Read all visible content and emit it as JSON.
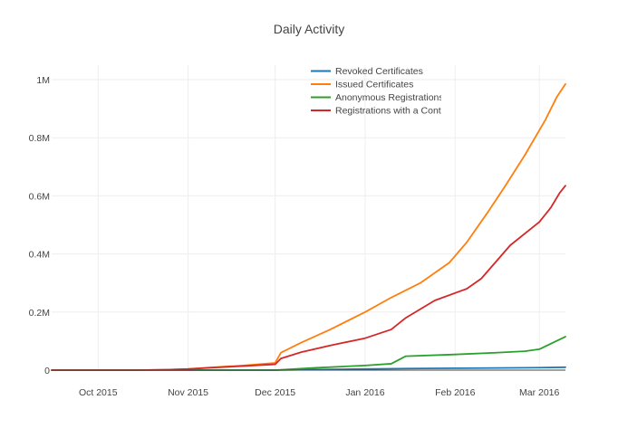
{
  "chart_data": {
    "type": "line",
    "title": "Daily Activity",
    "xlabel": "",
    "ylabel": "",
    "x_type": "date",
    "xlim": [
      "2015-09-15",
      "2016-03-10"
    ],
    "ylim": [
      0,
      1050000
    ],
    "grid": true,
    "legend_position": "top-right-inside",
    "x_ticks": [
      {
        "value": "2015-10-01",
        "label": "Oct 2015"
      },
      {
        "value": "2015-11-01",
        "label": "Nov 2015"
      },
      {
        "value": "2015-12-01",
        "label": "Dec 2015"
      },
      {
        "value": "2016-01-01",
        "label": "Jan 2016"
      },
      {
        "value": "2016-02-01",
        "label": "Feb 2016"
      },
      {
        "value": "2016-03-01",
        "label": "Mar 2016"
      }
    ],
    "y_ticks": [
      {
        "value": 0,
        "label": "0"
      },
      {
        "value": 200000,
        "label": "0.2M"
      },
      {
        "value": 400000,
        "label": "0.4M"
      },
      {
        "value": 600000,
        "label": "0.6M"
      },
      {
        "value": 800000,
        "label": "0.8M"
      },
      {
        "value": 1000000,
        "label": "1M"
      }
    ],
    "series": [
      {
        "name": "Revoked Certificates",
        "color": "#1f77b4",
        "points": [
          [
            "2015-09-15",
            0
          ],
          [
            "2015-12-01",
            0
          ],
          [
            "2015-12-15",
            2000
          ],
          [
            "2016-01-01",
            4000
          ],
          [
            "2016-01-15",
            5500
          ],
          [
            "2016-02-01",
            6500
          ],
          [
            "2016-02-15",
            7500
          ],
          [
            "2016-03-01",
            8500
          ],
          [
            "2016-03-10",
            10000
          ]
        ]
      },
      {
        "name": "Issued Certificates",
        "color": "#ff7f0e",
        "points": [
          [
            "2015-09-15",
            0
          ],
          [
            "2015-10-15",
            0
          ],
          [
            "2015-10-25",
            1500
          ],
          [
            "2015-11-01",
            4000
          ],
          [
            "2015-11-10",
            10000
          ],
          [
            "2015-11-20",
            16000
          ],
          [
            "2015-12-01",
            25000
          ],
          [
            "2015-12-03",
            60000
          ],
          [
            "2015-12-10",
            95000
          ],
          [
            "2015-12-20",
            140000
          ],
          [
            "2016-01-01",
            200000
          ],
          [
            "2016-01-10",
            250000
          ],
          [
            "2016-01-20",
            300000
          ],
          [
            "2016-01-30",
            370000
          ],
          [
            "2016-02-05",
            440000
          ],
          [
            "2016-02-12",
            540000
          ],
          [
            "2016-02-18",
            630000
          ],
          [
            "2016-02-25",
            740000
          ],
          [
            "2016-03-03",
            860000
          ],
          [
            "2016-03-07",
            940000
          ],
          [
            "2016-03-10",
            985000
          ]
        ]
      },
      {
        "name": "Anonymous Registrations",
        "color": "#2ca02c",
        "points": [
          [
            "2015-09-15",
            0
          ],
          [
            "2015-12-01",
            0
          ],
          [
            "2015-12-15",
            8000
          ],
          [
            "2016-01-01",
            16000
          ],
          [
            "2016-01-10",
            22000
          ],
          [
            "2016-01-15",
            48000
          ],
          [
            "2016-02-01",
            54000
          ],
          [
            "2016-02-15",
            60000
          ],
          [
            "2016-02-25",
            65000
          ],
          [
            "2016-03-01",
            72000
          ],
          [
            "2016-03-10",
            115000
          ]
        ]
      },
      {
        "name": "Registrations with a Contact",
        "color": "#d62728",
        "points": [
          [
            "2015-09-15",
            0
          ],
          [
            "2015-10-15",
            0
          ],
          [
            "2015-10-25",
            1500
          ],
          [
            "2015-11-01",
            4000
          ],
          [
            "2015-11-10",
            9000
          ],
          [
            "2015-11-20",
            14000
          ],
          [
            "2015-12-01",
            20000
          ],
          [
            "2015-12-03",
            40000
          ],
          [
            "2015-12-10",
            62000
          ],
          [
            "2015-12-20",
            85000
          ],
          [
            "2016-01-01",
            110000
          ],
          [
            "2016-01-10",
            140000
          ],
          [
            "2016-01-15",
            180000
          ],
          [
            "2016-01-25",
            240000
          ],
          [
            "2016-02-05",
            280000
          ],
          [
            "2016-02-10",
            315000
          ],
          [
            "2016-02-20",
            430000
          ],
          [
            "2016-03-01",
            510000
          ],
          [
            "2016-03-05",
            560000
          ],
          [
            "2016-03-08",
            610000
          ],
          [
            "2016-03-10",
            635000
          ]
        ]
      }
    ]
  }
}
